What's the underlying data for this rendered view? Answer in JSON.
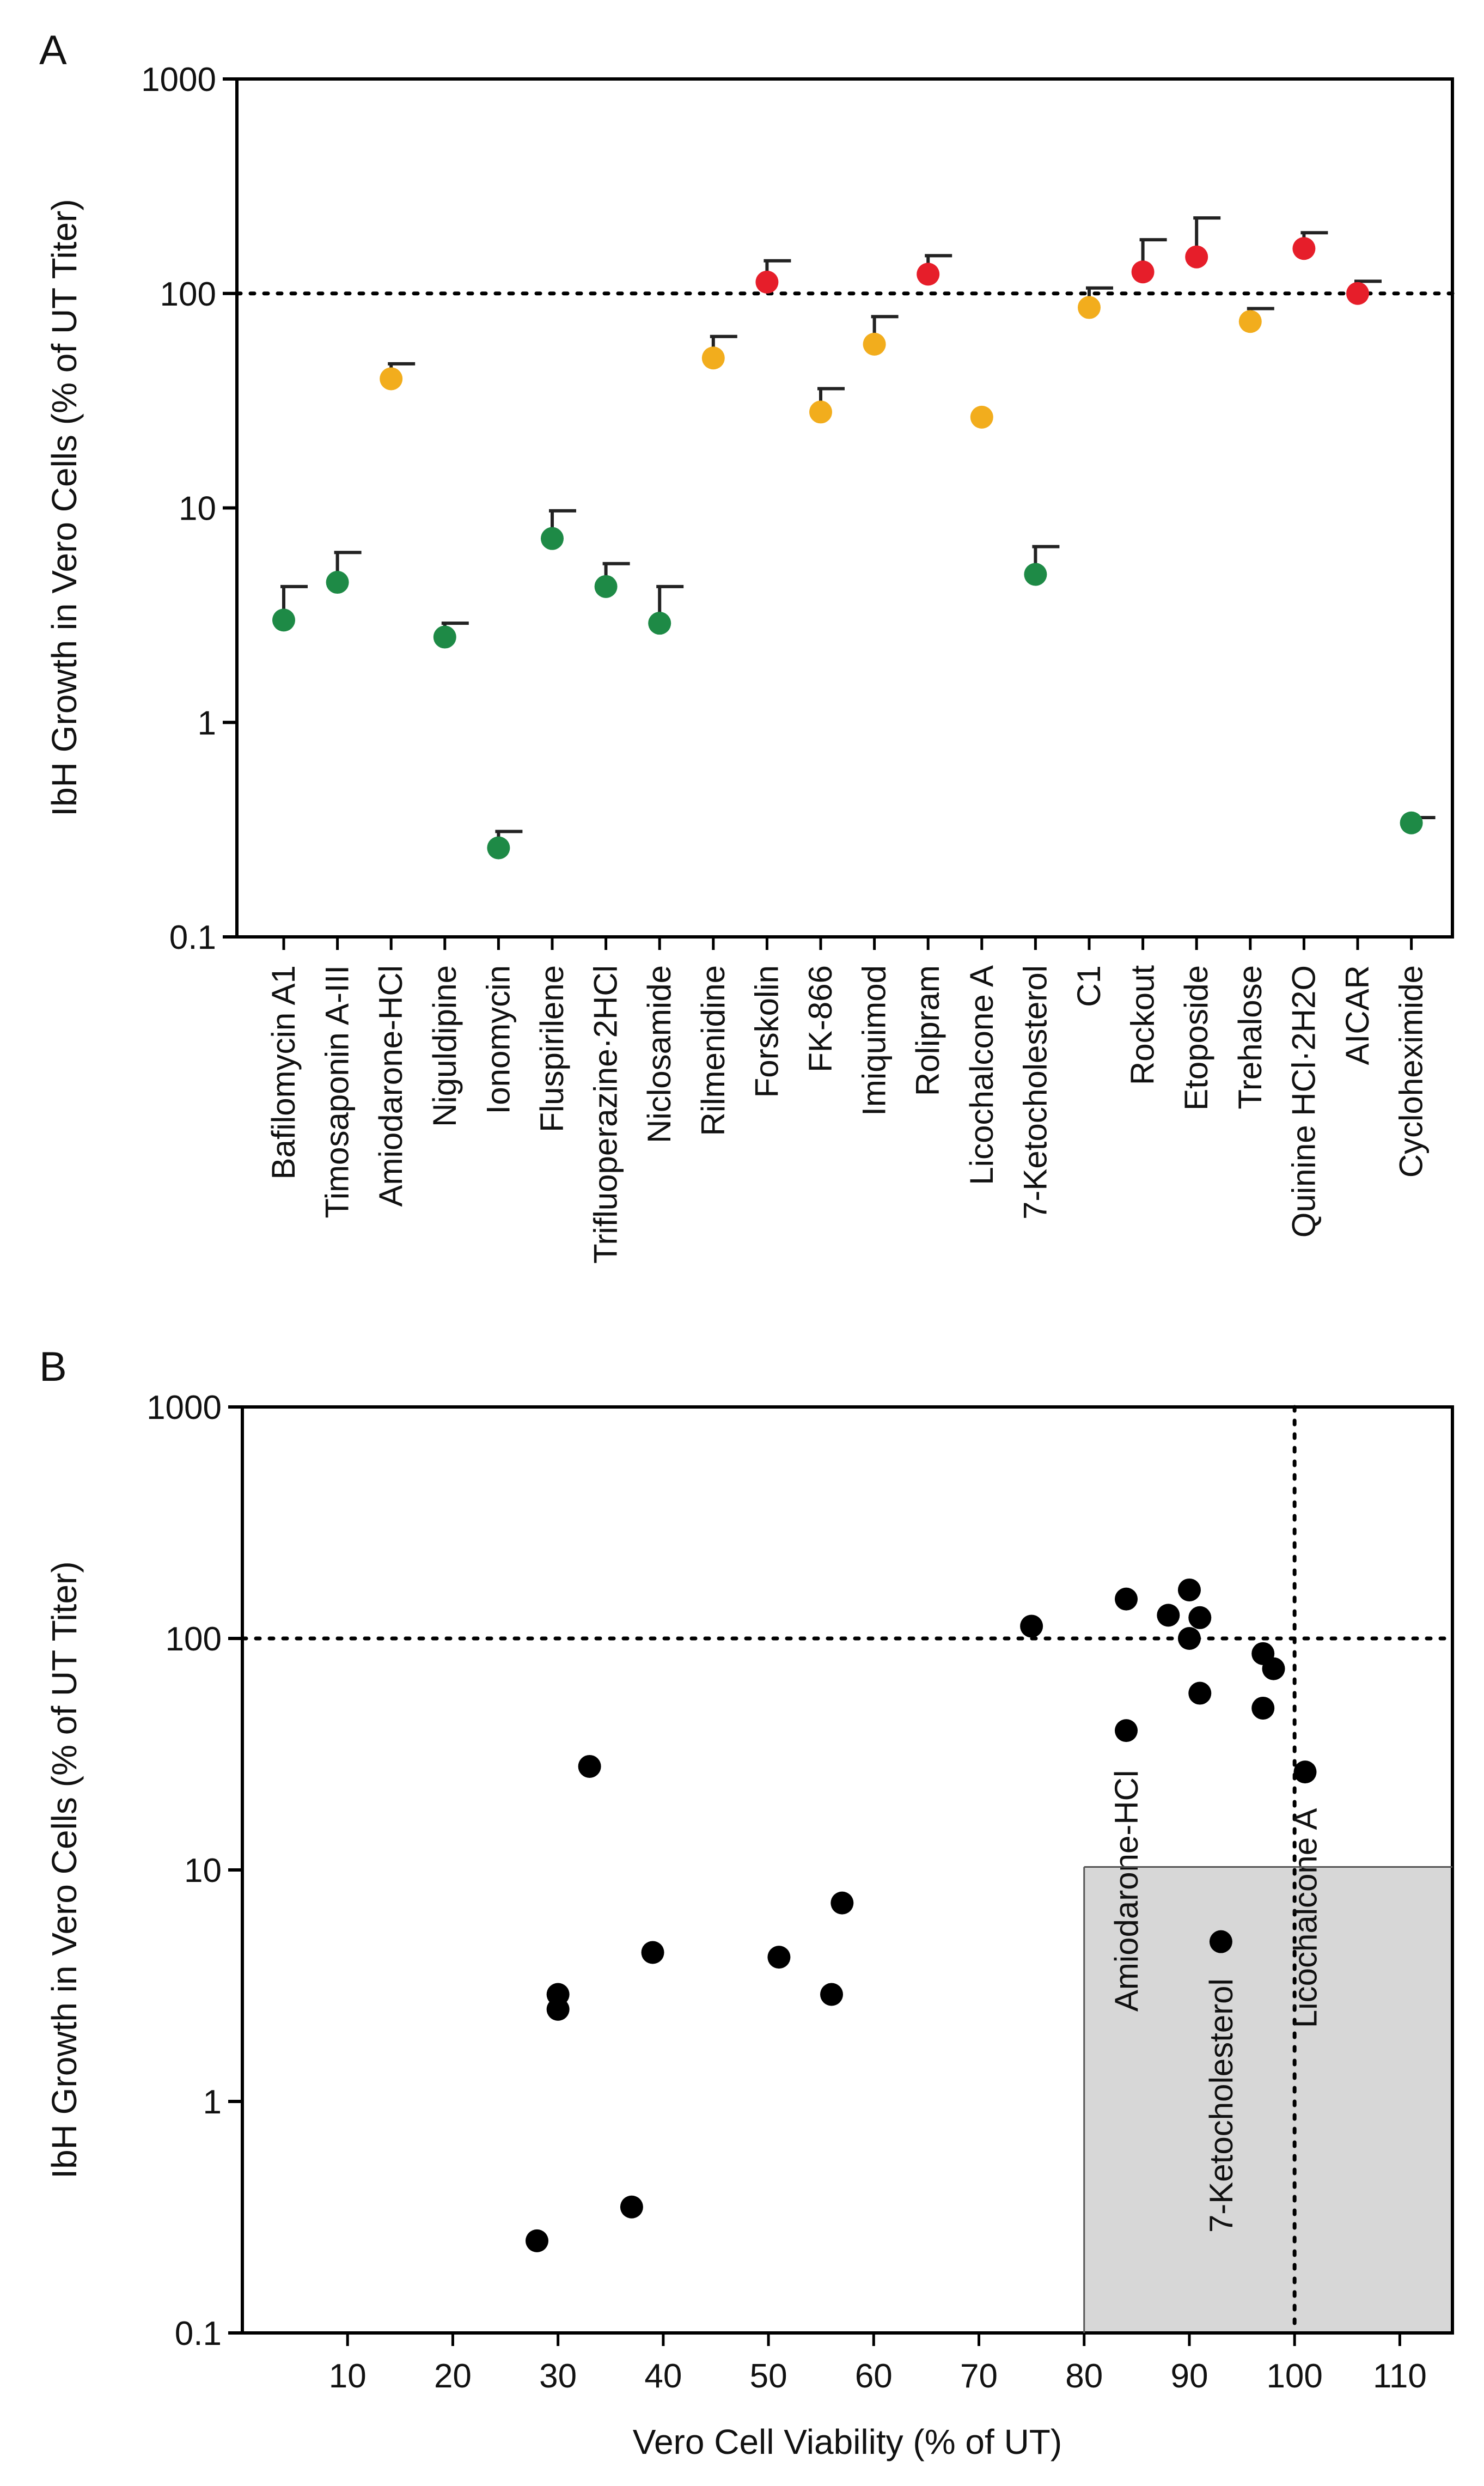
{
  "colors": {
    "green": "#1e8a46",
    "orange": "#f2ad1d",
    "red": "#e61e2a",
    "black": "#000000",
    "shade": "#d7d7d7"
  },
  "chart_data": [
    {
      "panel": "A",
      "type": "scatter",
      "yscale": "log",
      "ylabel": "IbH Growth in Vero Cells (% of UT Titer)",
      "ylim": [
        0.1,
        1000
      ],
      "yticks": [
        "1000",
        "100",
        "10",
        "1",
        "0.1"
      ],
      "reference_line": 100,
      "points": [
        {
          "label": "Bafilomycin A1",
          "value": 3.0,
          "err": 4.3,
          "group": "green"
        },
        {
          "label": "Timosaponin A-III",
          "value": 4.5,
          "err": 6.2,
          "group": "green"
        },
        {
          "label": "Amiodarone-HCl",
          "value": 40,
          "err": 47,
          "group": "orange"
        },
        {
          "label": "Niguldipine",
          "value": 2.5,
          "err": 2.9,
          "group": "green"
        },
        {
          "label": "Ionomycin",
          "value": 0.26,
          "err": 0.31,
          "group": "green"
        },
        {
          "label": "Fluspirilene",
          "value": 7.2,
          "err": 9.7,
          "group": "green"
        },
        {
          "label": "Trifluoperazine·2HCl",
          "value": 4.3,
          "err": 5.5,
          "group": "green"
        },
        {
          "label": "Niclosamide",
          "value": 2.9,
          "err": 4.3,
          "group": "green"
        },
        {
          "label": "Rilmenidine",
          "value": 50,
          "err": 63,
          "group": "orange"
        },
        {
          "label": "Forskolin",
          "value": 113,
          "err": 142,
          "group": "red"
        },
        {
          "label": "FK-866",
          "value": 28,
          "err": 36,
          "group": "orange"
        },
        {
          "label": "Imiquimod",
          "value": 58,
          "err": 78,
          "group": "orange"
        },
        {
          "label": "Rolipram",
          "value": 123,
          "err": 150,
          "group": "red"
        },
        {
          "label": "Licochalcone A",
          "value": 26.5,
          "err": null,
          "group": "orange"
        },
        {
          "label": "7-Ketocholesterol",
          "value": 4.9,
          "err": 6.6,
          "group": "green"
        },
        {
          "label": "C1",
          "value": 86,
          "err": 106,
          "group": "orange"
        },
        {
          "label": "Rockout",
          "value": 126,
          "err": 178,
          "group": "red"
        },
        {
          "label": "Etoposide",
          "value": 148,
          "err": 225,
          "group": "red"
        },
        {
          "label": "Trehalose",
          "value": 74,
          "err": 85,
          "group": "orange"
        },
        {
          "label": "Quinine HCl·2H2O",
          "value": 162,
          "err": 192,
          "group": "red"
        },
        {
          "label": "AICAR",
          "value": 100,
          "err": 114,
          "group": "red"
        },
        {
          "label": "Cycloheximide",
          "value": 0.34,
          "err": 0.36,
          "group": "green"
        }
      ]
    },
    {
      "panel": "B",
      "type": "scatter",
      "yscale": "log",
      "xlabel": "Vero Cell Viability (% of UT)",
      "ylabel": "IbH Growth in Vero Cells (% of UT Titer)",
      "xlim": [
        0,
        115
      ],
      "ylim": [
        0.1,
        1000
      ],
      "xticks": [
        "10",
        "20",
        "30",
        "40",
        "50",
        "60",
        "70",
        "80",
        "90",
        "100",
        "110"
      ],
      "yticks": [
        "1000",
        "100",
        "10",
        "1",
        "0.1"
      ],
      "vline": 100,
      "hline": 100,
      "shaded_region": {
        "x": [
          80,
          115
        ],
        "y": [
          0.1,
          10.3
        ]
      },
      "annotations": [
        "Amiodarone-HCl",
        "7-Ketocholesterol",
        "Licochalcone A"
      ],
      "points": [
        {
          "x": 28,
          "y": 0.25
        },
        {
          "x": 37,
          "y": 0.35
        },
        {
          "x": 30,
          "y": 2.5
        },
        {
          "x": 30,
          "y": 2.9
        },
        {
          "x": 33,
          "y": 28
        },
        {
          "x": 39,
          "y": 4.4
        },
        {
          "x": 51,
          "y": 4.2
        },
        {
          "x": 56,
          "y": 2.9
        },
        {
          "x": 57,
          "y": 7.2
        },
        {
          "x": 75,
          "y": 113
        },
        {
          "x": 84,
          "y": 148
        },
        {
          "x": 84,
          "y": 40
        },
        {
          "x": 88,
          "y": 126
        },
        {
          "x": 90,
          "y": 162
        },
        {
          "x": 91,
          "y": 123
        },
        {
          "x": 90,
          "y": 100
        },
        {
          "x": 91,
          "y": 58
        },
        {
          "x": 97,
          "y": 86
        },
        {
          "x": 98,
          "y": 74
        },
        {
          "x": 97,
          "y": 50
        },
        {
          "x": 101,
          "y": 26.5
        },
        {
          "x": 93,
          "y": 4.9
        }
      ]
    }
  ]
}
